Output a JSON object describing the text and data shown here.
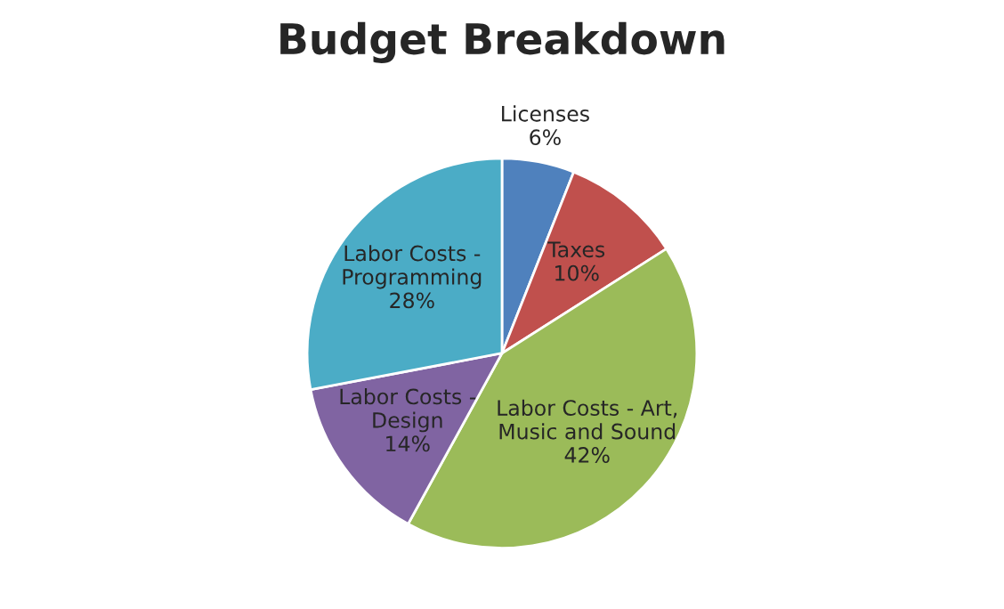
{
  "chart_data": {
    "type": "pie",
    "title": "Budget Breakdown",
    "categories": [
      "Licenses",
      "Taxes",
      "Labor Costs - Art,\nMusic and Sound",
      "Labor Costs -\nDesign",
      "Labor Costs -\nProgramming"
    ],
    "values": [
      6,
      10,
      42,
      14,
      28
    ],
    "value_labels": [
      "6%",
      "10%",
      "42%",
      "14%",
      "28%"
    ],
    "colors": [
      "#4f81bd",
      "#c0504d",
      "#9bbb59",
      "#8064a2",
      "#4bacc6"
    ],
    "legend": false
  }
}
